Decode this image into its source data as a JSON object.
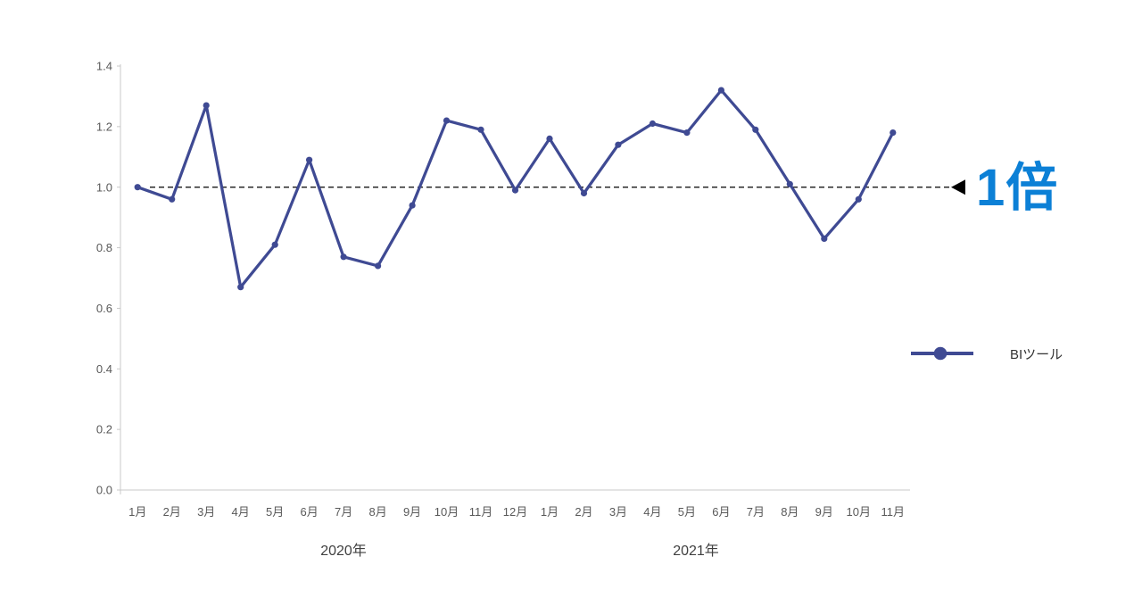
{
  "chart_data": {
    "type": "line",
    "title": "",
    "categories": [
      "1月",
      "2月",
      "3月",
      "4月",
      "5月",
      "6月",
      "7月",
      "8月",
      "9月",
      "10月",
      "11月",
      "12月",
      "1月",
      "2月",
      "3月",
      "4月",
      "5月",
      "6月",
      "7月",
      "8月",
      "9月",
      "10月",
      "11月"
    ],
    "year_groups": [
      {
        "label": "2020年",
        "start": 0,
        "end": 11
      },
      {
        "label": "2021年",
        "start": 12,
        "end": 22
      }
    ],
    "series": [
      {
        "name": "BIツール",
        "color": "#3F4A93",
        "values": [
          1.0,
          0.96,
          1.27,
          0.67,
          0.81,
          1.09,
          0.77,
          0.74,
          0.94,
          1.22,
          1.19,
          0.99,
          1.16,
          0.98,
          1.14,
          1.21,
          1.18,
          1.32,
          1.19,
          1.01,
          0.83,
          0.96,
          1.18
        ]
      }
    ],
    "xlabel": "",
    "ylabel": "",
    "ylim": [
      0.0,
      1.4
    ],
    "ytick_labels": [
      "0.0",
      "0.2",
      "0.4",
      "0.6",
      "0.8",
      "1.0",
      "1.2",
      "1.4"
    ],
    "grid": false,
    "legend_position": "right",
    "reference_line": {
      "value": 1.0,
      "style": "dashed",
      "color": "#000000",
      "label": "1倍",
      "label_color": "#0C80D6"
    }
  },
  "colors": {
    "background": "#FFFFFF",
    "axis": "#C9C9C9",
    "tick_text": "#595959",
    "year_text": "#404040",
    "legend_text": "#333333"
  }
}
